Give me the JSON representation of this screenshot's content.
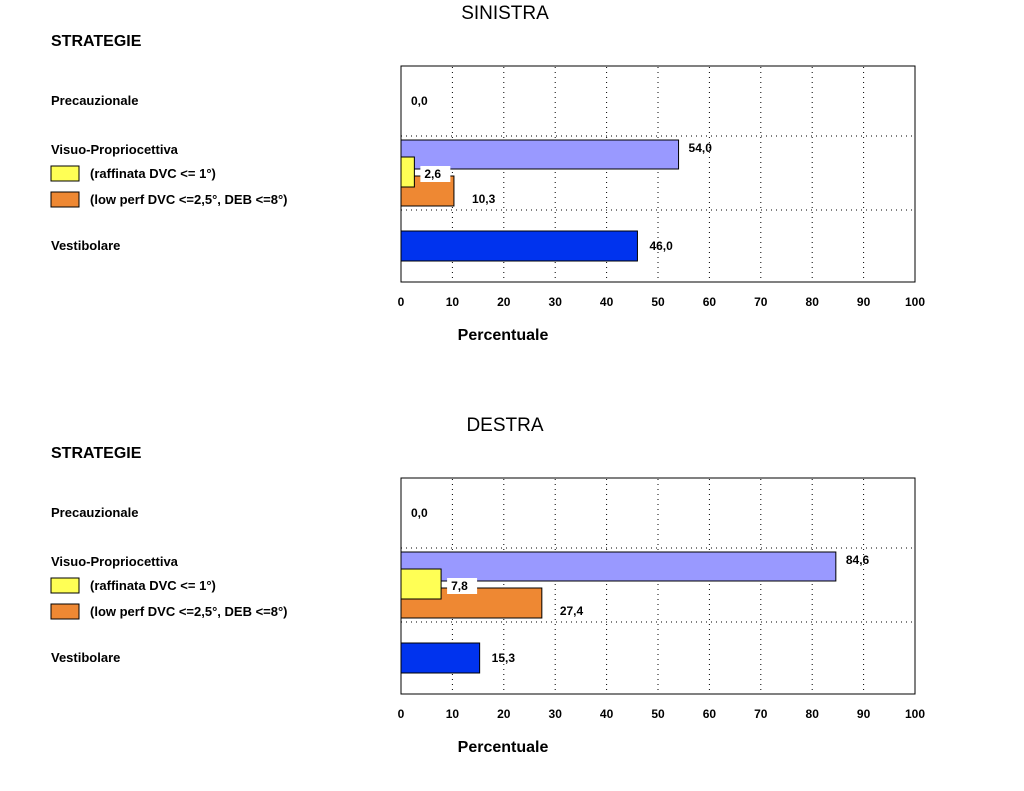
{
  "chart_data": [
    {
      "type": "bar",
      "orientation": "horizontal",
      "title": "SINISTRA",
      "legend_title": "STRATEGIE",
      "xlabel": "Percentuale",
      "xlim": [
        0,
        100
      ],
      "xticks": [
        "0",
        "10",
        "20",
        "30",
        "40",
        "50",
        "60",
        "70",
        "80",
        "90",
        "100"
      ],
      "grid": true,
      "categories": [
        {
          "label": "Precauzionale",
          "value": 0.0,
          "value_label": "0,0",
          "color": null
        },
        {
          "label": "Visuo-Propriocettiva",
          "value": 54.0,
          "value_label": "54,0",
          "color": "#9999ff"
        },
        {
          "label": "(raffinata DVC <= 1°)",
          "value": 2.6,
          "value_label": "2,6",
          "color": "#ffff55",
          "swatch": true
        },
        {
          "label": "(low perf DVC <=2,5°, DEB <=8°)",
          "value": 10.3,
          "value_label": "10,3",
          "color": "#ee8833",
          "swatch": true
        },
        {
          "label": "Vestibolare",
          "value": 46.0,
          "value_label": "46,0",
          "color": "#0033ee"
        }
      ]
    },
    {
      "type": "bar",
      "orientation": "horizontal",
      "title": "DESTRA",
      "legend_title": "STRATEGIE",
      "xlabel": "Percentuale",
      "xlim": [
        0,
        100
      ],
      "xticks": [
        "0",
        "10",
        "20",
        "30",
        "40",
        "50",
        "60",
        "70",
        "80",
        "90",
        "100"
      ],
      "grid": true,
      "categories": [
        {
          "label": "Precauzionale",
          "value": 0.0,
          "value_label": "0,0",
          "color": null
        },
        {
          "label": "Visuo-Propriocettiva",
          "value": 84.6,
          "value_label": "84,6",
          "color": "#9999ff"
        },
        {
          "label": "(raffinata DVC <= 1°)",
          "value": 7.8,
          "value_label": "7,8",
          "color": "#ffff55",
          "swatch": true
        },
        {
          "label": "(low perf DVC <=2,5°, DEB <=8°)",
          "value": 27.4,
          "value_label": "27,4",
          "color": "#ee8833",
          "swatch": true
        },
        {
          "label": "Vestibolare",
          "value": 15.3,
          "value_label": "15,3",
          "color": "#0033ee"
        }
      ]
    }
  ]
}
